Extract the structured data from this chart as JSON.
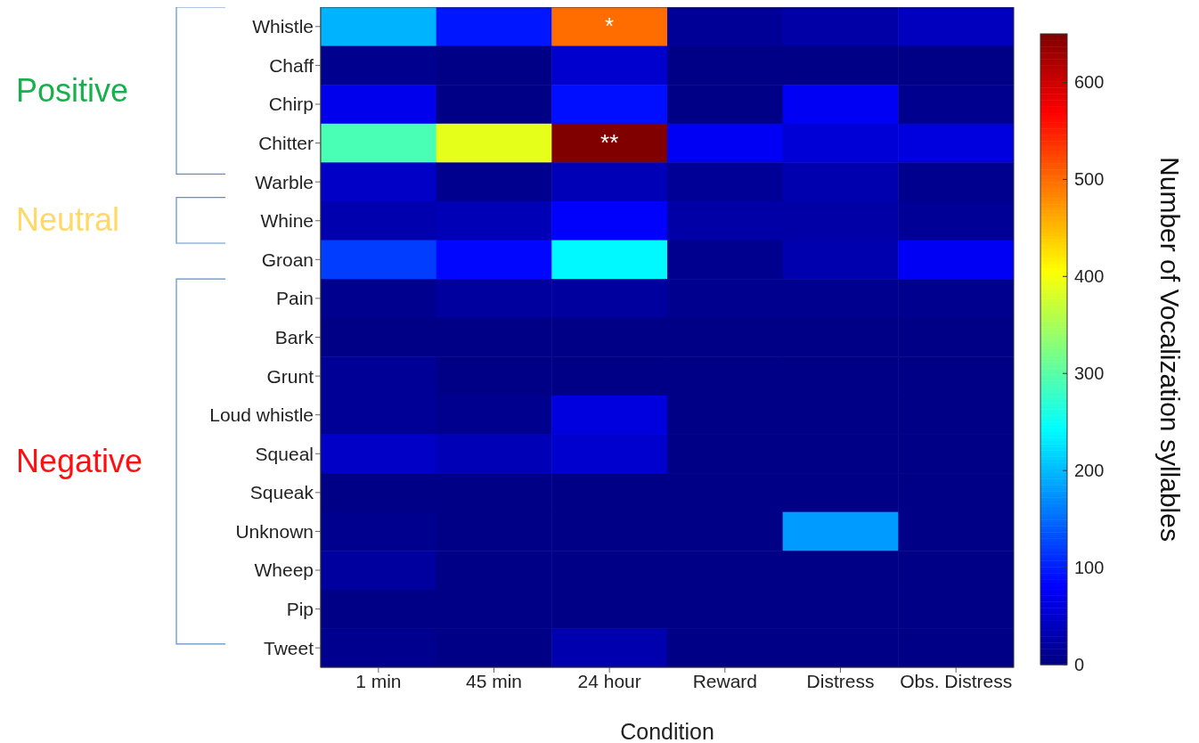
{
  "chart_data": {
    "type": "heatmap",
    "xlabel": "Condition",
    "clabel": "Number of Vocalization syllables",
    "categories": [
      "1 min",
      "45 min",
      "24 hour",
      "Reward",
      "Distress",
      "Obs. Distress"
    ],
    "y_categories": [
      "Whistle",
      "Chaff",
      "Chirp",
      "Chitter",
      "Warble",
      "Whine",
      "Groan",
      "Pain",
      "Bark",
      "Grunt",
      "Loud whistle",
      "Squeal",
      "Squeak",
      "Unknown",
      "Wheep",
      "Pip",
      "Tweet"
    ],
    "cells": [
      [
        195,
        95,
        500,
        15,
        25,
        40
      ],
      [
        10,
        5,
        50,
        5,
        5,
        5
      ],
      [
        70,
        5,
        90,
        5,
        75,
        10
      ],
      [
        290,
        390,
        650,
        75,
        55,
        60
      ],
      [
        45,
        10,
        35,
        15,
        30,
        10
      ],
      [
        30,
        35,
        80,
        25,
        25,
        15
      ],
      [
        120,
        85,
        240,
        10,
        30,
        75
      ],
      [
        10,
        20,
        20,
        10,
        10,
        10
      ],
      [
        5,
        5,
        5,
        5,
        5,
        5
      ],
      [
        15,
        5,
        5,
        5,
        5,
        5
      ],
      [
        15,
        10,
        60,
        5,
        5,
        5
      ],
      [
        45,
        35,
        50,
        5,
        5,
        5
      ],
      [
        5,
        5,
        5,
        5,
        5,
        5
      ],
      [
        10,
        5,
        5,
        5,
        180,
        5
      ],
      [
        20,
        5,
        5,
        5,
        5,
        5
      ],
      [
        5,
        5,
        5,
        5,
        5,
        5
      ],
      [
        10,
        5,
        30,
        5,
        5,
        5
      ]
    ],
    "clim": [
      0,
      650
    ],
    "cticks": [
      0,
      100,
      200,
      300,
      400,
      500,
      600
    ],
    "annotations": [
      "*",
      "**",
      "Positive",
      "Neutral",
      "Negative"
    ]
  }
}
